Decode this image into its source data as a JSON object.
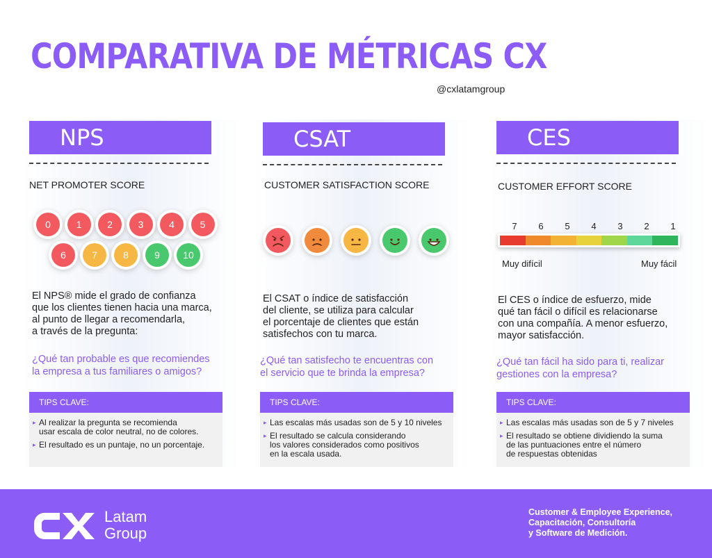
{
  "title": "COMPARATIVA DE MÉTRICAS CX",
  "handle": "@cxlatamgroup",
  "colors": {
    "accent": "#8b5cf6"
  },
  "nps": {
    "header": "NPS",
    "subtitle": "NET PROMOTER SCORE",
    "scale": [
      {
        "label": "0",
        "color": "#f25a5f"
      },
      {
        "label": "1",
        "color": "#f25a5f"
      },
      {
        "label": "2",
        "color": "#f25a5f"
      },
      {
        "label": "3",
        "color": "#f25a5f"
      },
      {
        "label": "4",
        "color": "#f25a5f"
      },
      {
        "label": "5",
        "color": "#f25a5f"
      },
      {
        "label": "6",
        "color": "#f25a5f"
      },
      {
        "label": "7",
        "color": "#f7b744"
      },
      {
        "label": "8",
        "color": "#f7b744"
      },
      {
        "label": "9",
        "color": "#49c86d"
      },
      {
        "label": "10",
        "color": "#49c86d"
      }
    ],
    "description": [
      "El NPS® mide el grado de confianza",
      "que los clientes tienen hacia una marca,",
      "al punto de llegar a recomendarla,",
      "a través de la pregunta:"
    ],
    "question": [
      "¿Qué tan probable es que recomiendes",
      "la empresa a tus familiares o amigos?"
    ],
    "tips_title": "TIPS CLAVE:",
    "tips": [
      [
        "Al realizar la pregunta se recomienda",
        "usar escala de color neutral, no de colores."
      ],
      [
        "El resultado es un puntaje, no un porcentaje."
      ]
    ]
  },
  "csat": {
    "header": "CSAT",
    "subtitle": "CUSTOMER SATISFACTION SCORE",
    "faces": [
      {
        "icon": "angry-face-icon",
        "color": "#f25a5f"
      },
      {
        "icon": "sad-face-icon",
        "color": "#f08a3c"
      },
      {
        "icon": "neutral-face-icon",
        "color": "#f7b744"
      },
      {
        "icon": "smile-face-icon",
        "color": "#49c86d"
      },
      {
        "icon": "happy-face-icon",
        "color": "#49c86d"
      }
    ],
    "description": [
      "El CSAT o índice de satisfacción",
      "del cliente, se utiliza para calcular",
      "el porcentaje de clientes que están",
      "satisfechos con tu marca."
    ],
    "question": [
      "¿Qué tan satisfecho te encuentras con",
      "el servicio que te brinda la empresa?"
    ],
    "tips_title": "TIPS CLAVE:",
    "tips": [
      [
        "Las escalas más usadas son de 5 y 10 niveles"
      ],
      [
        "El resultado se calcula considerando",
        "los valores considerados como positivos",
        "en la escala usada."
      ]
    ]
  },
  "ces": {
    "header": "CES",
    "subtitle": "CUSTOMER EFFORT SCORE",
    "scale": [
      {
        "label": "7",
        "color": "#e63b2e"
      },
      {
        "label": "6",
        "color": "#ee8a2c"
      },
      {
        "label": "5",
        "color": "#f2b233"
      },
      {
        "label": "4",
        "color": "#e6d23a"
      },
      {
        "label": "3",
        "color": "#9fd64a"
      },
      {
        "label": "2",
        "color": "#5fd69a"
      },
      {
        "label": "1",
        "color": "#2fb55c"
      }
    ],
    "label_left": "Muy difícil",
    "label_right": "Muy fácil",
    "description": [
      "El CES o índice de esfuerzo, mide",
      "qué tan fácil o difícil es relacionarse",
      "con una compañía. A menor esfuerzo,",
      "mayor satisfacción."
    ],
    "question": [
      "¿Qué tan fácil ha sido para ti, realizar",
      "gestiones con la empresa?"
    ],
    "tips_title": "TIPS CLAVE:",
    "tips": [
      [
        "Las escalas más usadas son de 5 y 7 niveles"
      ],
      [
        "El resultado se obtiene dividiendo la suma",
        "de las puntuaciones entre el número",
        "de respuestas obtenidas"
      ]
    ]
  },
  "footer": {
    "logo_line1": "Latam",
    "logo_line2": "Group",
    "tagline": [
      "Customer & Employee Experience,",
      "Capacitación, Consultoría",
      "y Software de Medición."
    ]
  }
}
